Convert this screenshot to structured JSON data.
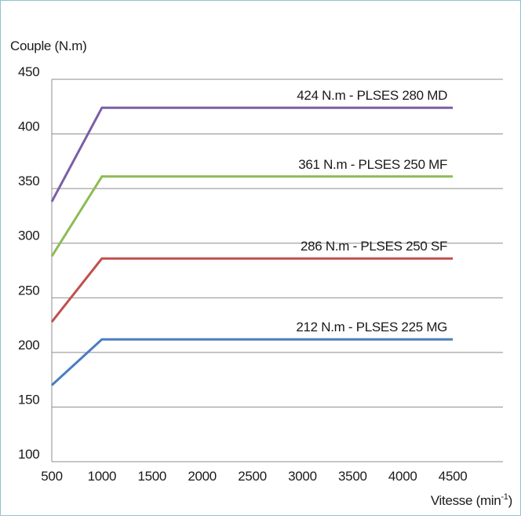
{
  "chart_data": {
    "type": "line",
    "title": "",
    "xlabel": "Vitesse (min",
    "xlabel_superscript": "-1",
    "xlabel_suffix": ")",
    "ylabel": "Couple (N.m)",
    "xlim": [
      500,
      5000
    ],
    "ylim": [
      100,
      450
    ],
    "x_ticks": [
      500,
      1000,
      1500,
      2000,
      2500,
      3000,
      3500,
      4000,
      4500
    ],
    "y_ticks": [
      100,
      150,
      200,
      250,
      300,
      350,
      400,
      450
    ],
    "grid": "horizontal",
    "legend": "inline labels above lines",
    "series": [
      {
        "name": "424 N.m - PLSES 280 MD",
        "color": "#7b5ea7",
        "x": [
          500,
          1000,
          4500
        ],
        "values": [
          338,
          424,
          424
        ]
      },
      {
        "name": "361 N.m - PLSES 250 MF",
        "color": "#8dbb55",
        "x": [
          500,
          1000,
          4500
        ],
        "values": [
          288,
          361,
          361
        ]
      },
      {
        "name": "286 N.m - PLSES 250 SF",
        "color": "#c0504d",
        "x": [
          500,
          1000,
          4500
        ],
        "values": [
          228,
          286,
          286
        ]
      },
      {
        "name": "212 N.m - PLSES 225 MG",
        "color": "#4a7ebf",
        "x": [
          500,
          1000,
          4500
        ],
        "values": [
          170,
          212,
          212
        ]
      }
    ]
  }
}
